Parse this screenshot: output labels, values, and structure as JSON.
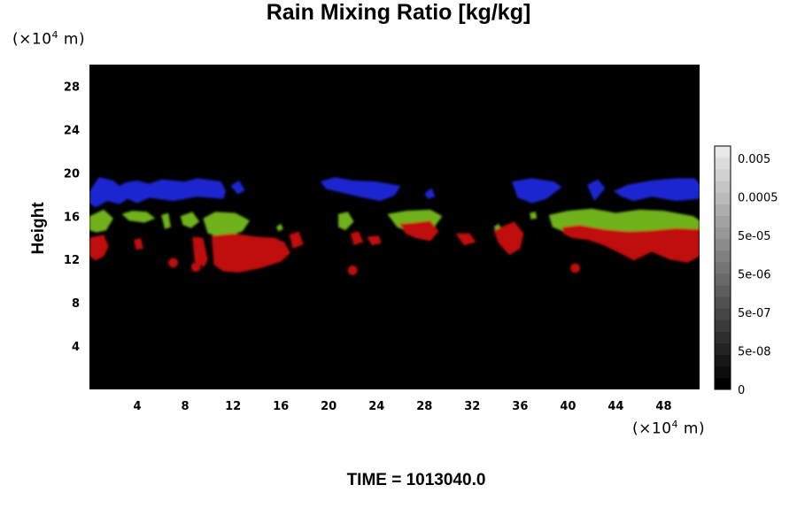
{
  "chart_data": {
    "type": "heatmap",
    "title": "Rain Mixing Ratio [kg/kg]",
    "ylabel": "Height",
    "xlabel": "",
    "x_unit": "(×10",
    "x_unit_exp": "4",
    "x_unit_tail": " m)",
    "y_unit": "(×10",
    "y_unit_exp": "4",
    "y_unit_tail": " m)",
    "xlim": [
      0,
      51
    ],
    "ylim": [
      0,
      30
    ],
    "x_ticks": [
      4,
      8,
      12,
      16,
      20,
      24,
      28,
      32,
      36,
      40,
      44,
      48
    ],
    "y_ticks": [
      4,
      8,
      12,
      16,
      20,
      24,
      28
    ],
    "grid": false,
    "background_color": "#000000",
    "colorbar": {
      "labels": [
        "0",
        "5e-08",
        "5e-07",
        "5e-06",
        "5e-05",
        "0.0005",
        "0.005"
      ],
      "min_label": "0",
      "max_label": "0.005"
    },
    "colors": {
      "blue": "#1a26d0",
      "green": "#6fb21c",
      "red": "#c01010"
    },
    "regions": [
      {
        "color": "blue",
        "points": [
          [
            0,
            18.3
          ],
          [
            0.8,
            19.6
          ],
          [
            2,
            19.3
          ],
          [
            2.5,
            18.8
          ],
          [
            3,
            19.1
          ],
          [
            4,
            19.3
          ],
          [
            5,
            19.0
          ],
          [
            6,
            19.4
          ],
          [
            8,
            19.2
          ],
          [
            9,
            19.5
          ],
          [
            11,
            19.2
          ],
          [
            11.4,
            18.3
          ],
          [
            11.2,
            17.6
          ],
          [
            9,
            17.8
          ],
          [
            7,
            17.4
          ],
          [
            5,
            17.7
          ],
          [
            4,
            17.2
          ],
          [
            3.2,
            17.6
          ],
          [
            2.5,
            17.1
          ],
          [
            1.5,
            17.4
          ],
          [
            0.5,
            16.8
          ],
          [
            0,
            17.2
          ]
        ]
      },
      {
        "color": "blue",
        "points": [
          [
            11.8,
            18.8
          ],
          [
            12.5,
            19.3
          ],
          [
            13,
            18.4
          ],
          [
            12.4,
            18.0
          ]
        ]
      },
      {
        "color": "blue",
        "points": [
          [
            19.3,
            19.2
          ],
          [
            20.5,
            19.6
          ],
          [
            22,
            19.3
          ],
          [
            24,
            19.2
          ],
          [
            26,
            18.8
          ],
          [
            25.5,
            17.9
          ],
          [
            24.3,
            17.4
          ],
          [
            22.5,
            17.8
          ],
          [
            21,
            18.2
          ],
          [
            19.8,
            18.5
          ]
        ]
      },
      {
        "color": "blue",
        "points": [
          [
            28,
            18.1
          ],
          [
            28.6,
            18.6
          ],
          [
            28.9,
            17.8
          ],
          [
            28.3,
            17.6
          ]
        ]
      },
      {
        "color": "blue",
        "points": [
          [
            35.3,
            19.2
          ],
          [
            37,
            19.5
          ],
          [
            38.8,
            19.2
          ],
          [
            39.5,
            18.7
          ],
          [
            38.2,
            17.6
          ],
          [
            37,
            17.2
          ],
          [
            35.8,
            17.7
          ]
        ]
      },
      {
        "color": "blue",
        "points": [
          [
            41.6,
            18.9
          ],
          [
            42.5,
            19.4
          ],
          [
            43.1,
            18.6
          ],
          [
            42.2,
            17.4
          ]
        ]
      },
      {
        "color": "blue",
        "points": [
          [
            43.8,
            18.3
          ],
          [
            45,
            18.9
          ],
          [
            47,
            19.3
          ],
          [
            49,
            19.5
          ],
          [
            50.6,
            19.5
          ],
          [
            51,
            19.0
          ],
          [
            51,
            17.6
          ],
          [
            49,
            17.4
          ],
          [
            47,
            17.8
          ],
          [
            45.5,
            17.4
          ],
          [
            44.5,
            17.8
          ]
        ]
      },
      {
        "color": "green",
        "points": [
          [
            0,
            16.0
          ],
          [
            1.2,
            16.6
          ],
          [
            2,
            15.8
          ],
          [
            1.4,
            14.7
          ],
          [
            0.6,
            14.5
          ],
          [
            0,
            14.7
          ]
        ]
      },
      {
        "color": "green",
        "points": [
          [
            2.7,
            16.2
          ],
          [
            3.6,
            16.5
          ],
          [
            4.8,
            16.4
          ],
          [
            5.5,
            15.8
          ],
          [
            4.6,
            15.4
          ],
          [
            3.3,
            15.6
          ]
        ]
      },
      {
        "color": "green",
        "points": [
          [
            6,
            16.1
          ],
          [
            6.6,
            16.3
          ],
          [
            6.8,
            15.0
          ],
          [
            6.3,
            14.8
          ]
        ]
      },
      {
        "color": "green",
        "points": [
          [
            7.6,
            16.0
          ],
          [
            8.6,
            16.4
          ],
          [
            9.2,
            15.5
          ],
          [
            8.5,
            14.9
          ],
          [
            7.8,
            15.2
          ]
        ]
      },
      {
        "color": "green",
        "points": [
          [
            9.5,
            15.8
          ],
          [
            10.5,
            16.4
          ],
          [
            12.2,
            16.3
          ],
          [
            13.4,
            15.6
          ],
          [
            12.8,
            14.6
          ],
          [
            11.2,
            14.0
          ],
          [
            9.9,
            14.4
          ]
        ]
      },
      {
        "color": "green",
        "points": [
          [
            15.6,
            15.0
          ],
          [
            16.0,
            15.3
          ],
          [
            16.2,
            14.8
          ],
          [
            15.8,
            14.6
          ]
        ]
      },
      {
        "color": "green",
        "points": [
          [
            20.8,
            16.2
          ],
          [
            21.6,
            16.4
          ],
          [
            22.1,
            15.5
          ],
          [
            21.4,
            14.7
          ],
          [
            20.8,
            15.0
          ]
        ]
      },
      {
        "color": "green",
        "points": [
          [
            24.9,
            16.2
          ],
          [
            26.5,
            16.5
          ],
          [
            28.5,
            16.6
          ],
          [
            29.5,
            16.0
          ],
          [
            28.7,
            14.8
          ],
          [
            27,
            14.4
          ],
          [
            25.7,
            15.0
          ]
        ]
      },
      {
        "color": "green",
        "points": [
          [
            33.8,
            15.0
          ],
          [
            34.2,
            15.3
          ],
          [
            34.5,
            14.7
          ],
          [
            34.0,
            14.6
          ]
        ]
      },
      {
        "color": "green",
        "points": [
          [
            36.8,
            16.3
          ],
          [
            37.3,
            16.4
          ],
          [
            37.4,
            15.8
          ],
          [
            36.9,
            15.7
          ]
        ]
      },
      {
        "color": "green",
        "points": [
          [
            38.4,
            16.1
          ],
          [
            40,
            16.5
          ],
          [
            42,
            16.7
          ],
          [
            44,
            16.3
          ],
          [
            46,
            16.6
          ],
          [
            48,
            16.5
          ],
          [
            50.5,
            16.0
          ],
          [
            51,
            15.6
          ],
          [
            51,
            14.4
          ],
          [
            48,
            14.1
          ],
          [
            45,
            14.5
          ],
          [
            42,
            14.3
          ],
          [
            40,
            14.4
          ],
          [
            38.7,
            15.0
          ]
        ]
      },
      {
        "color": "red",
        "points": [
          [
            0,
            14.0
          ],
          [
            1.2,
            14.3
          ],
          [
            1.6,
            13.2
          ],
          [
            1.2,
            12.3
          ],
          [
            0.5,
            11.9
          ],
          [
            0,
            12.3
          ]
        ]
      },
      {
        "color": "red",
        "points": [
          [
            3.7,
            13.8
          ],
          [
            4.3,
            14.0
          ],
          [
            4.5,
            13.0
          ],
          [
            3.9,
            12.9
          ]
        ]
      },
      {
        "color": "red",
        "points": [
          [
            8.6,
            14.1
          ],
          [
            9.5,
            14.0
          ],
          [
            9.9,
            12.0
          ],
          [
            9.6,
            11.3
          ],
          [
            8.8,
            11.8
          ]
        ]
      },
      {
        "color": "red",
        "points": [
          [
            10.2,
            14.2
          ],
          [
            12,
            14.4
          ],
          [
            14,
            14.1
          ],
          [
            15.5,
            14.0
          ],
          [
            16.3,
            13.6
          ],
          [
            16.8,
            12.6
          ],
          [
            16.0,
            11.8
          ],
          [
            14.3,
            11.2
          ],
          [
            12.5,
            10.8
          ],
          [
            11.2,
            10.9
          ],
          [
            10.4,
            11.5
          ]
        ]
      },
      {
        "color": "red",
        "points": [
          [
            16.7,
            14.3
          ],
          [
            17.5,
            14.6
          ],
          [
            17.9,
            13.4
          ],
          [
            17.0,
            13.0
          ]
        ]
      },
      {
        "color": "red",
        "points": [
          [
            21.8,
            14.4
          ],
          [
            22.5,
            14.6
          ],
          [
            22.9,
            13.6
          ],
          [
            22.1,
            13.3
          ]
        ]
      },
      {
        "color": "red",
        "points": [
          [
            23.2,
            14.1
          ],
          [
            24.2,
            14.2
          ],
          [
            24.4,
            13.5
          ],
          [
            23.6,
            13.3
          ]
        ]
      },
      {
        "color": "red",
        "points": [
          [
            25.9,
            15.3
          ],
          [
            27,
            15.4
          ],
          [
            28.5,
            15.6
          ],
          [
            29.2,
            14.6
          ],
          [
            28.5,
            13.7
          ],
          [
            27.2,
            14.0
          ],
          [
            26.4,
            14.4
          ]
        ]
      },
      {
        "color": "red",
        "points": [
          [
            30.6,
            14.4
          ],
          [
            31.8,
            14.4
          ],
          [
            32.3,
            13.6
          ],
          [
            31.3,
            13.3
          ]
        ]
      },
      {
        "color": "red",
        "points": [
          [
            33.8,
            14.7
          ],
          [
            35.5,
            15.5
          ],
          [
            36.3,
            14.4
          ],
          [
            36.0,
            13.0
          ],
          [
            35.1,
            12.4
          ],
          [
            34.2,
            13.5
          ]
        ]
      },
      {
        "color": "red",
        "points": [
          [
            39.5,
            15.0
          ],
          [
            41,
            15.2
          ],
          [
            43,
            14.8
          ],
          [
            45,
            14.6
          ],
          [
            47,
            14.7
          ],
          [
            49,
            14.9
          ],
          [
            51,
            14.8
          ],
          [
            51,
            12.3
          ],
          [
            50,
            11.7
          ],
          [
            48.5,
            12.0
          ],
          [
            47,
            12.7
          ],
          [
            45.5,
            11.9
          ],
          [
            44.3,
            12.6
          ],
          [
            43,
            13.3
          ],
          [
            41.7,
            13.8
          ],
          [
            40.3,
            14.0
          ],
          [
            39.6,
            14.4
          ]
        ]
      }
    ],
    "specks": [
      {
        "x": 7.0,
        "y": 11.7,
        "r": 0.2
      },
      {
        "x": 8.9,
        "y": 11.3,
        "r": 0.2
      },
      {
        "x": 22.0,
        "y": 11.0,
        "r": 0.2
      },
      {
        "x": 40.6,
        "y": 11.2,
        "r": 0.2
      }
    ]
  },
  "footer": {
    "time_label": "TIME = 1013040.0"
  }
}
